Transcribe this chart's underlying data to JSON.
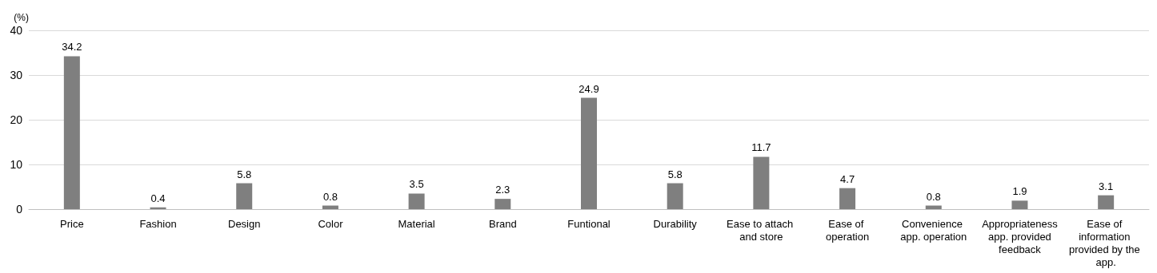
{
  "chart_data": {
    "type": "bar",
    "ylabel": "(%)",
    "categories": [
      "Price",
      "Fashion",
      "Design",
      "Color",
      "Material",
      "Brand",
      "Funtional",
      "Durability",
      "Ease to attach and store",
      "Ease of operation",
      "Convenience app. operation",
      "Appropriateness app. provided feedback",
      "Ease of information provided by the app."
    ],
    "values": [
      34.2,
      0.4,
      5.8,
      0.8,
      3.5,
      2.3,
      24.9,
      5.8,
      11.7,
      4.7,
      0.8,
      1.9,
      3.1
    ],
    "color": "#7f7f7f",
    "ylim": [
      0,
      40
    ],
    "yticks": [
      0,
      10,
      20,
      30,
      40
    ],
    "grid": "y",
    "data_labels": true
  }
}
